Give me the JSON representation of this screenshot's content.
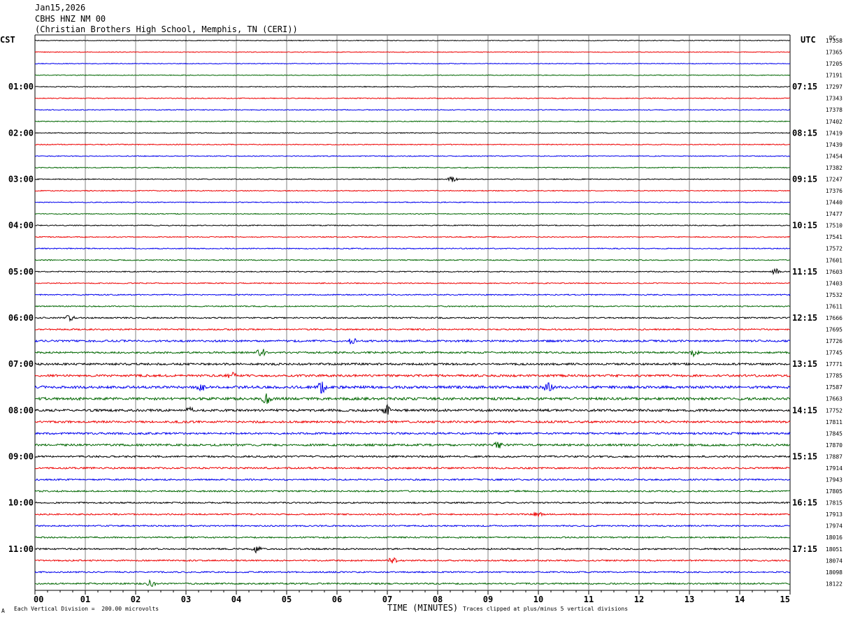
{
  "header": {
    "date": "Jan15,2026",
    "station": "CBHS HNZ NM 00",
    "location": "(Christian Brothers High School, Memphis, TN (CERI))"
  },
  "left_tz": "CST",
  "right_tz": "UTC",
  "dc_label": "DC",
  "footer": {
    "scale_note": "Each Vertical Division =  200.00 microvolts",
    "clip_note": "Traces clipped at plus/minus 5 vertical divisions",
    "scale_mark": "A"
  },
  "trace_colors": [
    "#000000",
    "#ee0000",
    "#0000ee",
    "#006600"
  ],
  "chart_data": {
    "type": "line",
    "xlabel": "TIME (MINUTES)",
    "xlim": [
      0,
      15
    ],
    "x_ticks": [
      "00",
      "01",
      "02",
      "03",
      "04",
      "05",
      "06",
      "07",
      "08",
      "09",
      "10",
      "11",
      "12",
      "13",
      "14",
      "15"
    ],
    "left_hour_labels": [
      "01:00",
      "02:00",
      "03:00",
      "04:00",
      "05:00",
      "06:00",
      "07:00",
      "08:00",
      "09:00",
      "10:00",
      "11:00"
    ],
    "right_hour_labels": [
      "07:15",
      "08:15",
      "09:15",
      "10:15",
      "11:15",
      "12:15",
      "13:15",
      "14:15",
      "15:15",
      "16:15",
      "17:15"
    ],
    "dc_offsets": [
      "17358",
      "17365",
      "17205",
      "17191",
      "17297",
      "17343",
      "17378",
      "17402",
      "17419",
      "17439",
      "17454",
      "17382",
      "17247",
      "17376",
      "17440",
      "17477",
      "17510",
      "17541",
      "17572",
      "17601",
      "17603",
      "17403",
      "17532",
      "17611",
      "17666",
      "17695",
      "17726",
      "17745",
      "17771",
      "17785",
      "17587",
      "17663",
      "17752",
      "17811",
      "17845",
      "17870",
      "17887",
      "17914",
      "17943",
      "17805",
      "17815",
      "17913",
      "17974",
      "18016",
      "18051",
      "18074",
      "18098",
      "18122"
    ],
    "trace_noise_level": [
      0.3,
      0.3,
      0.3,
      0.3,
      0.35,
      0.35,
      0.35,
      0.35,
      0.35,
      0.35,
      0.35,
      0.35,
      0.35,
      0.35,
      0.35,
      0.35,
      0.4,
      0.4,
      0.4,
      0.4,
      0.4,
      0.4,
      0.45,
      0.45,
      0.55,
      0.55,
      0.75,
      0.7,
      0.8,
      0.85,
      1.0,
      1.0,
      0.9,
      0.8,
      0.75,
      0.8,
      0.7,
      0.65,
      0.6,
      0.6,
      0.55,
      0.55,
      0.55,
      0.55,
      0.6,
      0.55,
      0.55,
      0.6
    ],
    "events": [
      {
        "trace": 12,
        "minute": 8.3,
        "amp": 3
      },
      {
        "trace": 20,
        "minute": 14.7,
        "amp": 3
      },
      {
        "trace": 24,
        "minute": 0.7,
        "amp": 3
      },
      {
        "trace": 26,
        "minute": 6.3,
        "amp": 3
      },
      {
        "trace": 27,
        "minute": 4.5,
        "amp": 4
      },
      {
        "trace": 27,
        "minute": 13.1,
        "amp": 4
      },
      {
        "trace": 29,
        "minute": 3.9,
        "amp": 3
      },
      {
        "trace": 30,
        "minute": 3.3,
        "amp": 3
      },
      {
        "trace": 30,
        "minute": 5.7,
        "amp": 5
      },
      {
        "trace": 30,
        "minute": 10.2,
        "amp": 5
      },
      {
        "trace": 31,
        "minute": 4.6,
        "amp": 4
      },
      {
        "trace": 32,
        "minute": 7.0,
        "amp": 4
      },
      {
        "trace": 32,
        "minute": 3.1,
        "amp": 3
      },
      {
        "trace": 35,
        "minute": 9.2,
        "amp": 3
      },
      {
        "trace": 41,
        "minute": 10.0,
        "amp": 3
      },
      {
        "trace": 44,
        "minute": 4.4,
        "amp": 3
      },
      {
        "trace": 45,
        "minute": 7.1,
        "amp": 3
      },
      {
        "trace": 47,
        "minute": 2.3,
        "amp": 3
      }
    ]
  }
}
